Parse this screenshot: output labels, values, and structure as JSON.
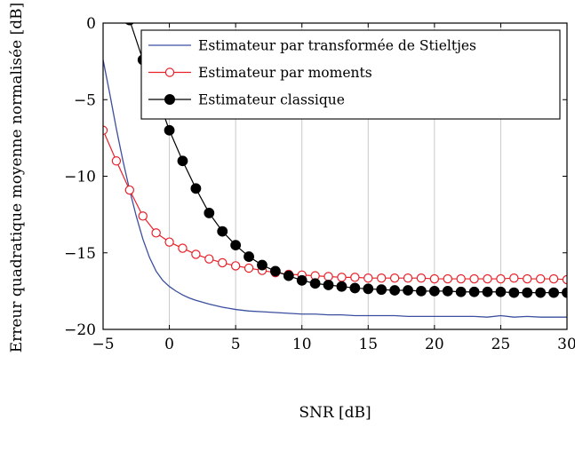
{
  "chart_data": {
    "type": "line",
    "title": "",
    "xlabel": "SNR [dB]",
    "ylabel": "Erreur quadratique moyenne normalisée [dB]",
    "xlim": [
      -5,
      30
    ],
    "ylim": [
      -20,
      0
    ],
    "xticks": [
      -5,
      0,
      5,
      10,
      15,
      20,
      25,
      30
    ],
    "yticks": [
      -20,
      -15,
      -10,
      -5,
      0
    ],
    "xtick_labels": [
      "−5",
      "0",
      "5",
      "10",
      "15",
      "20",
      "25",
      "30"
    ],
    "ytick_labels": [
      "−20",
      "−15",
      "−10",
      "−5",
      "0"
    ],
    "grid": "vertical",
    "legend_position": "top-right",
    "series": [
      {
        "name": "Estimateur par transformée de Stieltjes",
        "color": "#3b4f9e",
        "marker": "none",
        "x": [
          -5,
          -4.5,
          -4,
          -3.5,
          -3,
          -2.5,
          -2,
          -1.5,
          -1,
          -0.5,
          0,
          0.5,
          1,
          1.5,
          2,
          3,
          4,
          5,
          6,
          7,
          8,
          9,
          10,
          11,
          12,
          13,
          14,
          15,
          16,
          17,
          18,
          19,
          20,
          21,
          22,
          23,
          24,
          25,
          26,
          27,
          28,
          29,
          30
        ],
        "y": [
          -2.4,
          -4.6,
          -6.9,
          -9.0,
          -10.9,
          -12.6,
          -14.1,
          -15.3,
          -16.2,
          -16.8,
          -17.2,
          -17.5,
          -17.75,
          -17.95,
          -18.1,
          -18.35,
          -18.55,
          -18.7,
          -18.8,
          -18.85,
          -18.9,
          -18.95,
          -19.0,
          -19.0,
          -19.05,
          -19.05,
          -19.1,
          -19.1,
          -19.1,
          -19.1,
          -19.15,
          -19.15,
          -19.15,
          -19.15,
          -19.15,
          -19.15,
          -19.2,
          -19.1,
          -19.2,
          -19.15,
          -19.2,
          -19.2,
          -19.2
        ]
      },
      {
        "name": "Estimateur par moments",
        "color": "#e8202a",
        "marker": "open-circle",
        "x": [
          -5,
          -4,
          -3,
          -2,
          -1,
          0,
          1,
          2,
          3,
          4,
          5,
          6,
          7,
          8,
          9,
          10,
          11,
          12,
          13,
          14,
          15,
          16,
          17,
          18,
          19,
          20,
          21,
          22,
          23,
          24,
          25,
          26,
          27,
          28,
          29,
          30
        ],
        "y": [
          -7.0,
          -9.0,
          -10.9,
          -12.6,
          -13.7,
          -14.3,
          -14.7,
          -15.1,
          -15.4,
          -15.65,
          -15.85,
          -16.0,
          -16.15,
          -16.3,
          -16.4,
          -16.45,
          -16.5,
          -16.55,
          -16.6,
          -16.6,
          -16.65,
          -16.65,
          -16.65,
          -16.65,
          -16.65,
          -16.7,
          -16.7,
          -16.7,
          -16.7,
          -16.7,
          -16.7,
          -16.65,
          -16.7,
          -16.7,
          -16.7,
          -16.75
        ]
      },
      {
        "name": "Estimateur classique",
        "color": "#000000",
        "marker": "filled-circle",
        "x": [
          -3,
          -2,
          -1,
          0,
          1,
          2,
          3,
          4,
          5,
          6,
          7,
          8,
          9,
          10,
          11,
          12,
          13,
          14,
          15,
          16,
          17,
          18,
          19,
          20,
          21,
          22,
          23,
          24,
          25,
          26,
          27,
          28,
          29,
          30
        ],
        "y": [
          0.2,
          -2.4,
          -4.6,
          -7.0,
          -9.0,
          -10.8,
          -12.4,
          -13.6,
          -14.5,
          -15.25,
          -15.8,
          -16.2,
          -16.5,
          -16.8,
          -17.0,
          -17.1,
          -17.2,
          -17.3,
          -17.35,
          -17.4,
          -17.45,
          -17.45,
          -17.5,
          -17.5,
          -17.5,
          -17.55,
          -17.55,
          -17.55,
          -17.55,
          -17.6,
          -17.6,
          -17.6,
          -17.6,
          -17.6
        ]
      }
    ]
  }
}
